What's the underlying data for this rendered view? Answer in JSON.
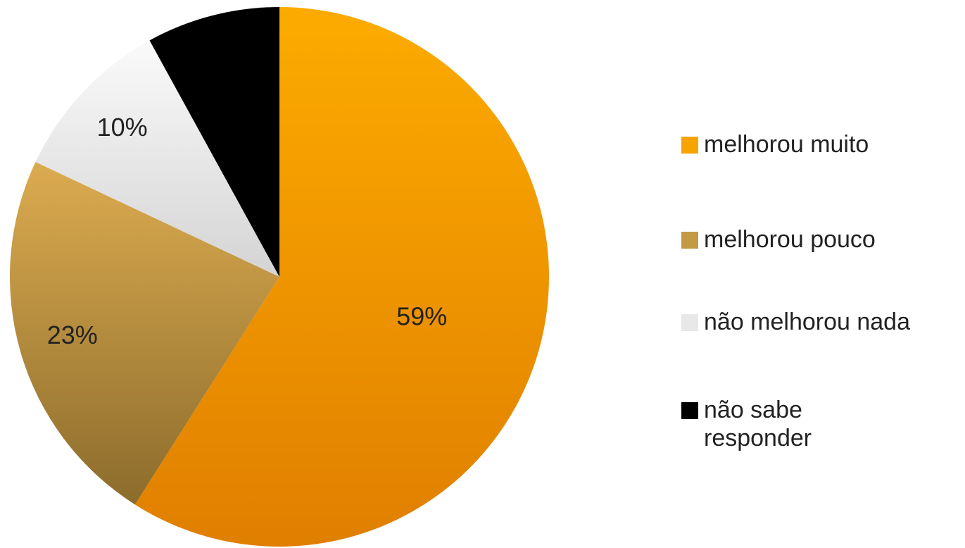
{
  "chart_data": {
    "type": "pie",
    "categories": [
      "melhorou muito",
      "melhorou pouco",
      "não melhorou nada",
      "não sabe responder"
    ],
    "values": [
      59,
      23,
      10,
      8
    ],
    "value_labels": [
      "59%",
      "23%",
      "10%",
      null
    ],
    "colors": [
      "#f7a300",
      "#c29a45",
      "#e8e8e8",
      "#000000"
    ],
    "legend": "right"
  }
}
